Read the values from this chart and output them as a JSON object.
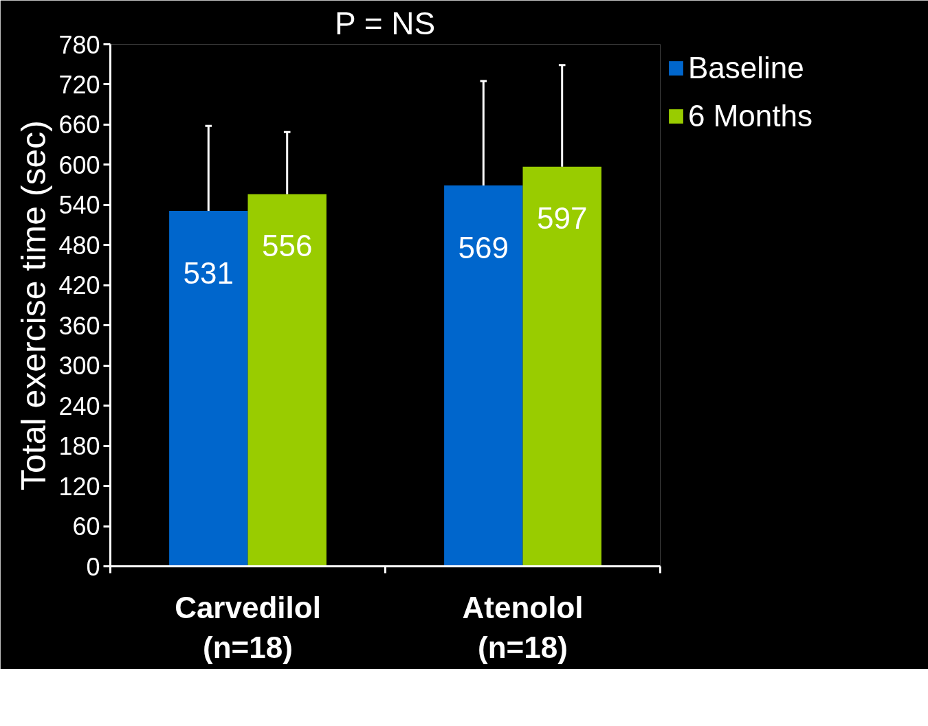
{
  "chart_data": {
    "type": "bar",
    "title": "P = NS",
    "ylabel": "Total exercise time (sec)",
    "categories": [
      "Carvedilol\n(n=18)",
      "Atenolol\n(n=18)"
    ],
    "series": [
      {
        "name": "Baseline",
        "color": "#0066cc",
        "values": [
          531,
          569
        ],
        "errors": [
          [
            531,
            658
          ],
          [
            569,
            725
          ]
        ]
      },
      {
        "name": "6 Months",
        "color": "#99cc00",
        "values": [
          556,
          597
        ],
        "errors": [
          [
            556,
            649
          ],
          [
            597,
            749
          ]
        ]
      }
    ],
    "ylim": [
      0,
      780
    ],
    "yticks": [
      0,
      60,
      120,
      180,
      240,
      300,
      360,
      420,
      480,
      540,
      600,
      660,
      720,
      780
    ],
    "grid": false,
    "legend": "top right",
    "data_labels": true
  }
}
